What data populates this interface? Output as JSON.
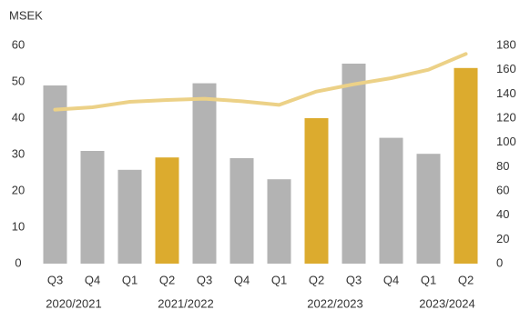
{
  "chart_data": {
    "type": "bar_line",
    "y_label": "MSEK",
    "categories": [
      "Q3",
      "Q4",
      "Q1",
      "Q2",
      "Q3",
      "Q4",
      "Q1",
      "Q2",
      "Q3",
      "Q4",
      "Q1",
      "Q2"
    ],
    "periods": [
      "2020/2021",
      "2021/2022",
      "2022/2023",
      "2023/2024"
    ],
    "series": [
      {
        "color": "#b3b3b3",
        "highlight_color": "#dcab2e",
        "highlight": [
          false,
          false,
          false,
          true,
          false,
          false,
          false,
          true,
          false,
          false,
          false,
          true
        ],
        "values": [
          49,
          31,
          25.8,
          29.2,
          49.6,
          29,
          23.2,
          40,
          55,
          34.6,
          30.2,
          53.8
        ]
      },
      {
        "color": "#ecd187",
        "axis": "y2",
        "values": [
          127,
          129,
          133.5,
          135,
          136,
          134,
          131,
          142,
          148,
          153,
          160,
          173
        ]
      }
    ],
    "ylim": [
      0,
      60
    ],
    "yticks": [
      0,
      10,
      20,
      30,
      40,
      50,
      60
    ],
    "y2lim": [
      0,
      180
    ],
    "y2ticks": [
      0,
      20,
      40,
      60,
      80,
      100,
      120,
      140,
      160,
      180
    ]
  }
}
